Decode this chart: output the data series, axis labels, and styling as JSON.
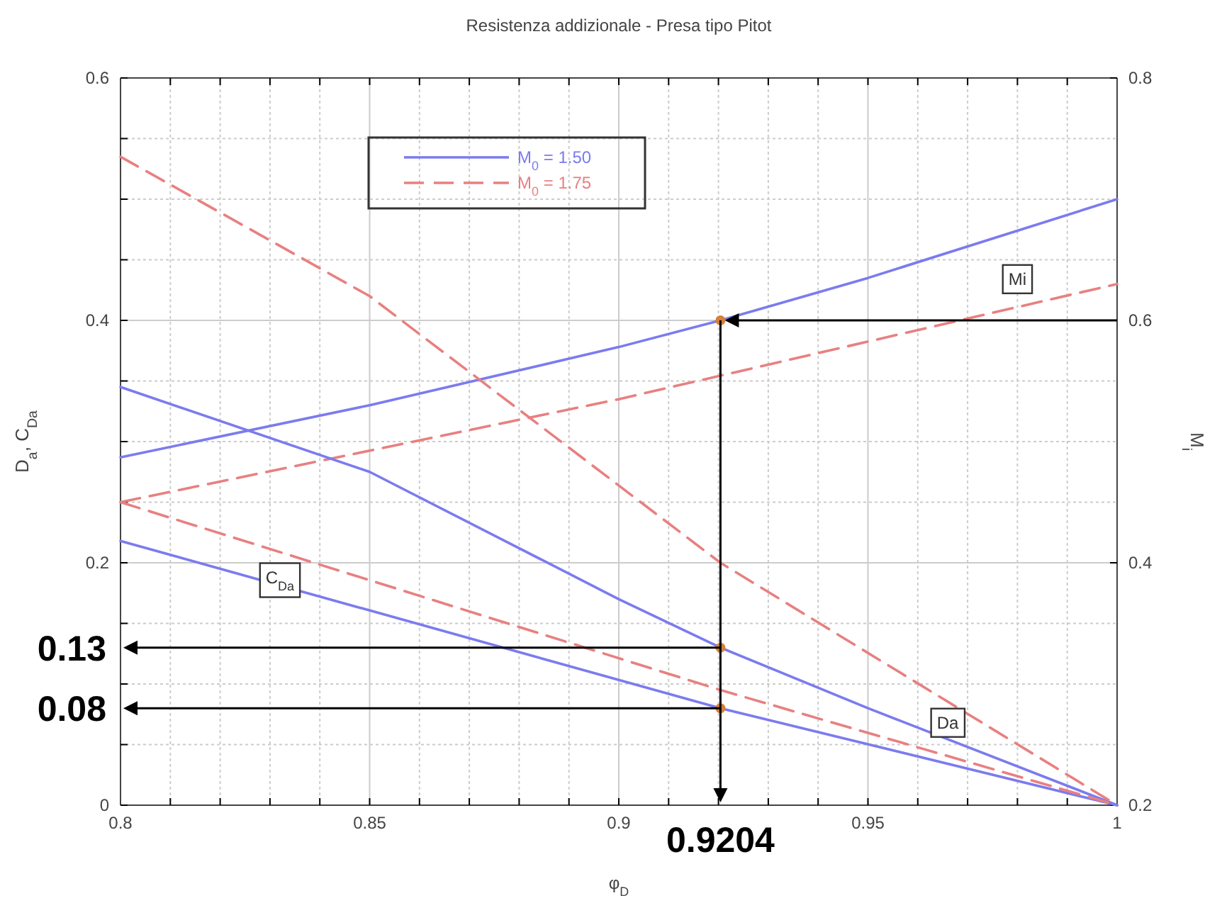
{
  "chart_data": {
    "type": "line",
    "title": "Resistenza addizionale - Presa tipo Pitot",
    "xlabel": "φ$_{D}$",
    "ylabel": "D$_{a}$, C$_{Da}$",
    "y2label": "M$_{i}$",
    "xlim": [
      0.8,
      1.0
    ],
    "xticks": [
      0.8,
      {
        "value": 0.81,
        "label": null
      },
      {
        "value": 0.82,
        "label": null
      },
      {
        "value": 0.83,
        "label": null
      },
      {
        "value": 0.84,
        "label": null
      },
      0.85,
      {
        "value": 0.86,
        "label": null
      },
      {
        "value": 0.87,
        "label": null
      },
      {
        "value": 0.88,
        "label": null
      },
      {
        "value": 0.89,
        "label": null
      },
      0.9,
      {
        "value": 0.91,
        "label": null
      },
      {
        "value": 0.92,
        "label": null
      },
      {
        "value": 0.93,
        "label": null
      },
      {
        "value": 0.94,
        "label": null
      },
      0.95,
      {
        "value": 0.96,
        "label": null
      },
      {
        "value": 0.97,
        "label": null
      },
      {
        "value": 0.98,
        "label": null
      },
      {
        "value": 0.99,
        "label": null
      },
      1.0
    ],
    "ylim": [
      0,
      0.6
    ],
    "yticks": [
      0,
      {
        "value": 0.05,
        "label": null
      },
      {
        "value": 0.1,
        "label": null
      },
      {
        "value": 0.15,
        "label": null
      },
      0.2,
      {
        "value": 0.25,
        "label": null
      },
      {
        "value": 0.3,
        "label": null
      },
      {
        "value": 0.35,
        "label": null
      },
      0.4,
      {
        "value": 0.45,
        "label": null
      },
      {
        "value": 0.5,
        "label": null
      },
      {
        "value": 0.55,
        "label": null
      },
      0.6
    ],
    "y2lim": [
      0.2,
      0.8
    ],
    "y2ticks": [
      0.2,
      0.4,
      0.6,
      0.8
    ],
    "grid": true,
    "legend": "top left",
    "marker": "none",
    "series": [
      {
        "name": "M$_{0}$ = 1.50",
        "color": "#7b7bef",
        "axis": "y2",
        "line_style": "solid",
        "x": [
          0.8,
          0.85,
          0.9,
          0.9204,
          0.95,
          1.0
        ],
        "values": [
          0.487,
          0.53,
          0.578,
          0.6,
          0.635,
          0.7
        ]
      },
      {
        "name": "M$_{0}$ = 1.75",
        "color": "#e88080",
        "axis": "y2",
        "line_style": "dashed",
        "x": [
          0.8,
          0.9,
          1.0
        ],
        "values": [
          0.45,
          0.535,
          0.63
        ]
      },
      {
        "color": "#7b7bef",
        "line_style": "solid",
        "x": [
          0.8,
          0.85,
          0.9,
          0.9204,
          0.95,
          1.0
        ],
        "values": [
          0.345,
          0.275,
          0.17,
          0.13,
          0.08,
          0
        ]
      },
      {
        "color": "#e88080",
        "line_style": "dashed",
        "x": [
          0.8,
          0.85,
          0.9204,
          1.0
        ],
        "values": [
          0.535,
          0.42,
          0.2,
          0
        ]
      },
      {
        "color": "#7b7bef",
        "line_style": "solid",
        "x": [
          0.8,
          0.9204,
          1.0
        ],
        "values": [
          0.218,
          0.08,
          0
        ]
      },
      {
        "color": "#e88080",
        "line_style": "dashed",
        "x": [
          0.8,
          0.9204,
          1.0
        ],
        "values": [
          0.25,
          0.095,
          0
        ]
      },
      {
        "type": "scatter",
        "color": "#d2803c",
        "marker": "circle",
        "x": [
          0.9204,
          0.9204
        ],
        "values": [
          0.13,
          0.08
        ]
      },
      {
        "type": "scatter",
        "color": "#d2803c",
        "marker": "circle",
        "axis": "y2",
        "x": [
          0.9204
        ],
        "values": [
          0.6
        ]
      }
    ],
    "annotations": [
      {
        "text": "Mi",
        "x": 0.98,
        "y": 0.434
      },
      {
        "text": "C$_{Da}$",
        "x": 0.832,
        "y": 0.188
      },
      {
        "text": "Da",
        "x": 0.966,
        "y": 0.068
      },
      {
        "text": "0.13",
        "x": 0.9204,
        "y": 0.13
      },
      {
        "text": "0.08",
        "x": 0.9204,
        "y": 0.08
      },
      {
        "text": "0.9204",
        "x": 0.9204,
        "y": 0.4
      }
    ]
  }
}
